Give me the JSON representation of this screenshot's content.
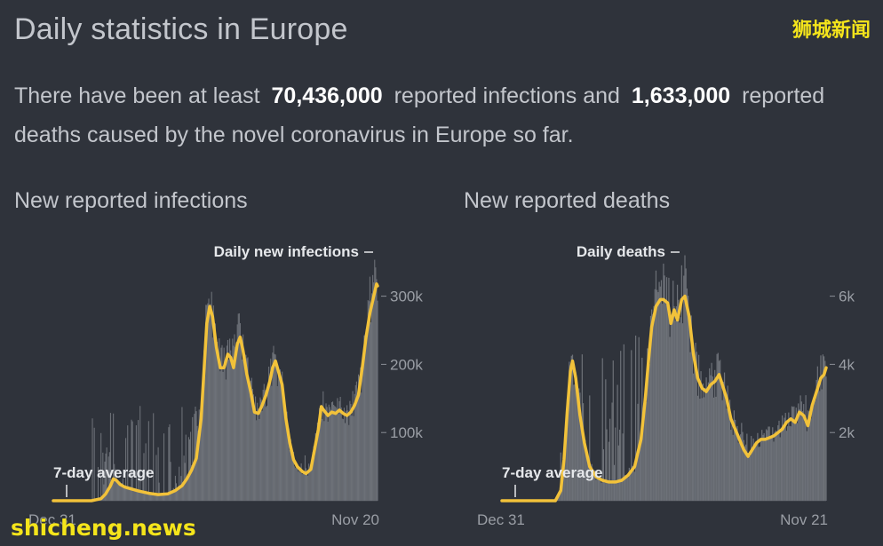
{
  "page": {
    "title": "Daily statistics in Europe",
    "watermark_top": "狮城新闻",
    "watermark_bottom": "shicheng.news"
  },
  "summary": {
    "prefix": "There have been at least",
    "infections": "70,436,000",
    "middle": "reported infections and",
    "deaths": "1,633,000",
    "suffix": "reported deaths caused by the novel coronavirus in Europe so far."
  },
  "colors": {
    "background": "#2f333b",
    "bars": "#6d7178",
    "average": "#f2c23a",
    "text": "#c3c6cc",
    "annotation": "#e6e8eb"
  },
  "chart_data": [
    {
      "type": "area",
      "title": "New reported infections",
      "x_start_label": "Dec 31",
      "x_end_label": "Nov 20",
      "y_ticks": [
        100000,
        200000,
        300000
      ],
      "y_tick_labels": [
        "100k",
        "200k",
        "300k"
      ],
      "ylim": [
        0,
        375000
      ],
      "bars_label": "Daily new infections",
      "avg_label": "7-day average",
      "series_7day_avg": [
        [
          0,
          0
        ],
        [
          40,
          0
        ],
        [
          50,
          3000
        ],
        [
          55,
          10000
        ],
        [
          60,
          22000
        ],
        [
          63,
          32000
        ],
        [
          66,
          30000
        ],
        [
          70,
          24000
        ],
        [
          75,
          20000
        ],
        [
          80,
          18000
        ],
        [
          90,
          14000
        ],
        [
          100,
          11000
        ],
        [
          110,
          9000
        ],
        [
          120,
          10000
        ],
        [
          128,
          15000
        ],
        [
          135,
          22000
        ],
        [
          140,
          32000
        ],
        [
          145,
          45000
        ],
        [
          150,
          62000
        ],
        [
          155,
          120000
        ],
        [
          158,
          190000
        ],
        [
          161,
          260000
        ],
        [
          164,
          285000
        ],
        [
          167,
          270000
        ],
        [
          171,
          225000
        ],
        [
          175,
          195000
        ],
        [
          179,
          195000
        ],
        [
          183,
          215000
        ],
        [
          186,
          210000
        ],
        [
          189,
          195000
        ],
        [
          193,
          230000
        ],
        [
          196,
          240000
        ],
        [
          199,
          220000
        ],
        [
          203,
          185000
        ],
        [
          207,
          160000
        ],
        [
          211,
          130000
        ],
        [
          215,
          128000
        ],
        [
          219,
          140000
        ],
        [
          223,
          155000
        ],
        [
          227,
          175000
        ],
        [
          230,
          195000
        ],
        [
          233,
          205000
        ],
        [
          236,
          190000
        ],
        [
          240,
          170000
        ],
        [
          244,
          120000
        ],
        [
          248,
          85000
        ],
        [
          252,
          60000
        ],
        [
          256,
          50000
        ],
        [
          261,
          43000
        ],
        [
          265,
          40000
        ],
        [
          270,
          46000
        ],
        [
          274,
          75000
        ],
        [
          278,
          105000
        ],
        [
          281,
          138000
        ],
        [
          284,
          132000
        ],
        [
          288,
          125000
        ],
        [
          292,
          130000
        ],
        [
          296,
          128000
        ],
        [
          300,
          133000
        ],
        [
          304,
          128000
        ],
        [
          308,
          125000
        ],
        [
          312,
          130000
        ],
        [
          316,
          140000
        ],
        [
          320,
          155000
        ],
        [
          324,
          195000
        ],
        [
          328,
          240000
        ],
        [
          332,
          275000
        ],
        [
          336,
          300000
        ],
        [
          339,
          318000
        ],
        [
          340,
          315000
        ]
      ],
      "series_daily_extremes": [
        [
          155,
          140000
        ],
        [
          160,
          290000
        ],
        [
          163,
          315000
        ],
        [
          166,
          310000
        ],
        [
          172,
          250000
        ],
        [
          178,
          215000
        ],
        [
          185,
          240000
        ],
        [
          192,
          260000
        ],
        [
          196,
          262000
        ],
        [
          200,
          245000
        ],
        [
          210,
          150000
        ],
        [
          226,
          190000
        ],
        [
          231,
          250000
        ],
        [
          234,
          220000
        ],
        [
          250,
          75000
        ],
        [
          258,
          55000
        ],
        [
          275,
          90000
        ],
        [
          282,
          155000
        ],
        [
          290,
          145000
        ],
        [
          298,
          150000
        ],
        [
          306,
          145000
        ],
        [
          315,
          160000
        ],
        [
          325,
          215000
        ],
        [
          330,
          260000
        ],
        [
          335,
          330000
        ],
        [
          339,
          375000
        ]
      ],
      "x_domain": [
        0,
        340
      ]
    },
    {
      "type": "area",
      "title": "New reported deaths",
      "x_start_label": "Dec 31",
      "x_end_label": "Nov 21",
      "y_ticks": [
        2000,
        4000,
        6000
      ],
      "y_tick_labels": [
        "2k",
        "4k",
        "6k"
      ],
      "ylim": [
        0,
        7500
      ],
      "bars_label": "Daily deaths",
      "avg_label": "7-day average",
      "series_7day_avg": [
        [
          0,
          0
        ],
        [
          50,
          0
        ],
        [
          55,
          300
        ],
        [
          58,
          1200
        ],
        [
          61,
          2600
        ],
        [
          64,
          3800
        ],
        [
          66,
          4100
        ],
        [
          69,
          3600
        ],
        [
          73,
          2500
        ],
        [
          77,
          1700
        ],
        [
          82,
          1000
        ],
        [
          88,
          700
        ],
        [
          94,
          600
        ],
        [
          100,
          550
        ],
        [
          106,
          550
        ],
        [
          112,
          600
        ],
        [
          118,
          750
        ],
        [
          124,
          1000
        ],
        [
          130,
          1800
        ],
        [
          134,
          3000
        ],
        [
          137,
          4100
        ],
        [
          140,
          5100
        ],
        [
          144,
          5700
        ],
        [
          148,
          5900
        ],
        [
          151,
          5900
        ],
        [
          155,
          5800
        ],
        [
          158,
          5200
        ],
        [
          161,
          5600
        ],
        [
          164,
          5300
        ],
        [
          168,
          5900
        ],
        [
          171,
          6000
        ],
        [
          175,
          5400
        ],
        [
          179,
          4300
        ],
        [
          183,
          3600
        ],
        [
          187,
          3300
        ],
        [
          191,
          3200
        ],
        [
          195,
          3400
        ],
        [
          199,
          3500
        ],
        [
          203,
          3700
        ],
        [
          207,
          3300
        ],
        [
          210,
          3000
        ],
        [
          214,
          2400
        ],
        [
          218,
          2100
        ],
        [
          222,
          1800
        ],
        [
          226,
          1500
        ],
        [
          230,
          1300
        ],
        [
          234,
          1500
        ],
        [
          238,
          1700
        ],
        [
          242,
          1800
        ],
        [
          246,
          1800
        ],
        [
          250,
          1850
        ],
        [
          254,
          1900
        ],
        [
          258,
          2000
        ],
        [
          262,
          2100
        ],
        [
          266,
          2300
        ],
        [
          270,
          2400
        ],
        [
          274,
          2300
        ],
        [
          278,
          2600
        ],
        [
          282,
          2500
        ],
        [
          286,
          2200
        ],
        [
          290,
          2800
        ],
        [
          294,
          3200
        ],
        [
          298,
          3600
        ],
        [
          301,
          3700
        ],
        [
          303,
          3900
        ]
      ],
      "series_daily_extremes": [
        [
          61,
          3000
        ],
        [
          64,
          4600
        ],
        [
          66,
          4500
        ],
        [
          136,
          5000
        ],
        [
          142,
          6000
        ],
        [
          147,
          6400
        ],
        [
          152,
          6900
        ],
        [
          157,
          6500
        ],
        [
          163,
          6600
        ],
        [
          168,
          7000
        ],
        [
          172,
          6500
        ],
        [
          178,
          5000
        ],
        [
          190,
          3700
        ],
        [
          202,
          4200
        ],
        [
          215,
          2800
        ],
        [
          235,
          1900
        ],
        [
          250,
          2200
        ],
        [
          265,
          2600
        ],
        [
          280,
          2900
        ],
        [
          292,
          3500
        ],
        [
          300,
          5200
        ],
        [
          303,
          4600
        ]
      ],
      "x_domain": [
        0,
        303
      ]
    }
  ]
}
